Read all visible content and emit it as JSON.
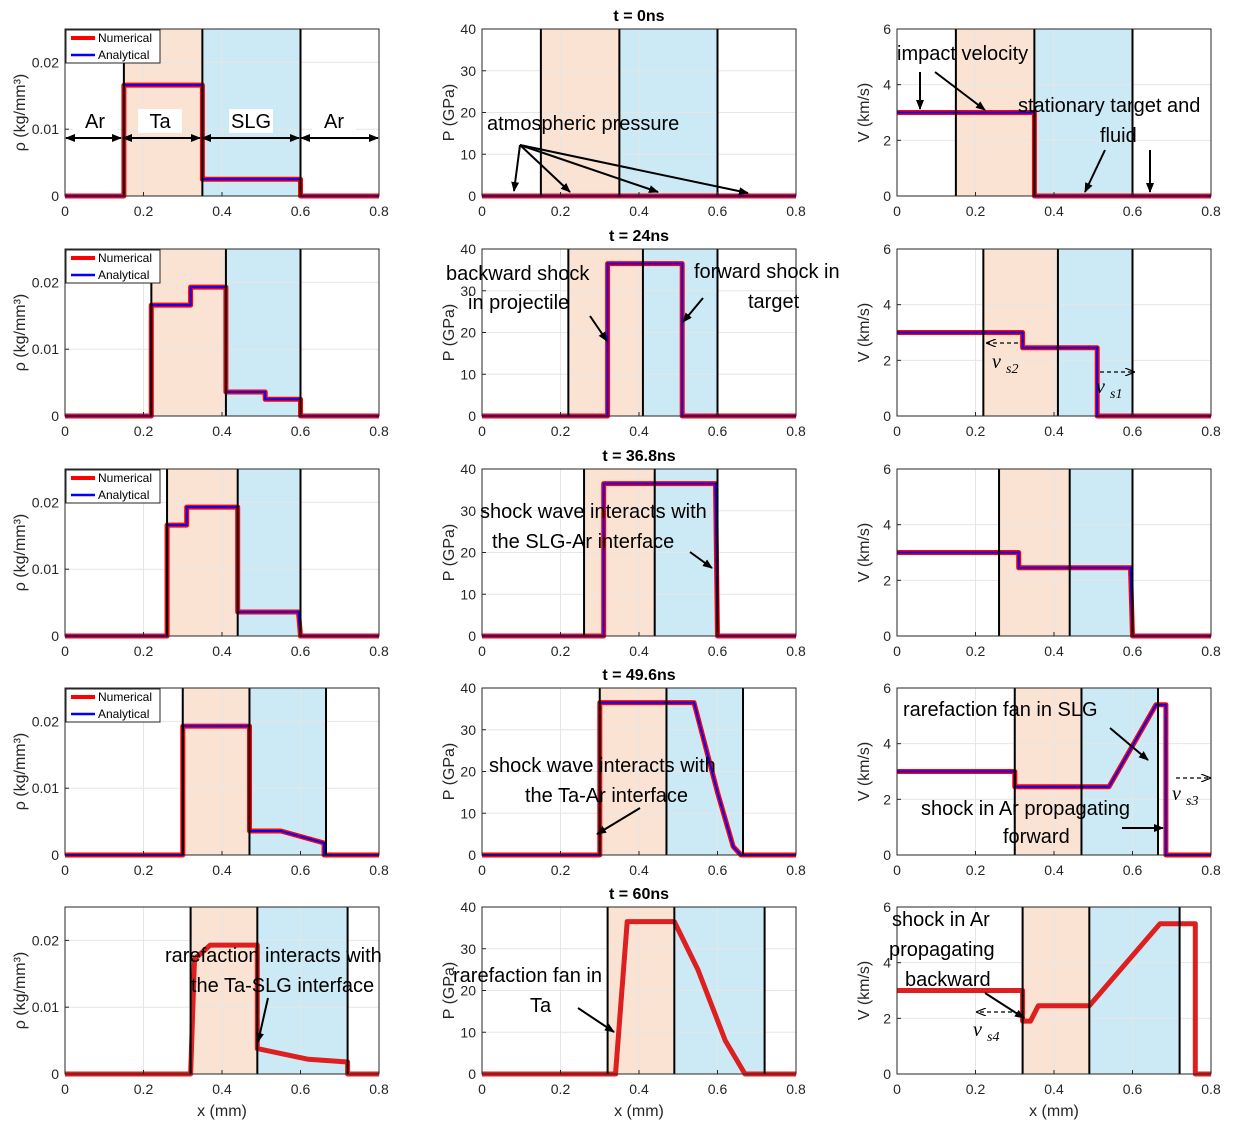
{
  "colors": {
    "numerical": "#ff0000",
    "analytical": "#0000ff",
    "ta_region": "#fbe3d4",
    "slg_region": "#cceaf6",
    "interface": "#000000",
    "grid": "#e6e6e6"
  },
  "axes": {
    "x_label": "x (mm)",
    "rho_label": "ρ (kg/mm³)",
    "p_label": "P (GPa)",
    "v_label": "V (km/s)",
    "x_ticks": [
      "0",
      "0.2",
      "0.4",
      "0.6",
      "0.8"
    ],
    "rho_ticks": [
      "0",
      "0.01",
      "0.02"
    ],
    "p_ticks": [
      "0",
      "10",
      "20",
      "30",
      "40"
    ],
    "v_ticks": [
      "0",
      "2",
      "4",
      "6"
    ]
  },
  "legend": {
    "numerical": "Numerical",
    "analytical": "Analytical"
  },
  "chart_data": [
    {
      "type": "line",
      "title": "t = 0ns",
      "xlim": [
        0,
        0.8
      ],
      "rho_ylim": [
        0,
        0.025
      ],
      "p_ylim": [
        0,
        40
      ],
      "v_ylim": [
        0,
        6
      ],
      "interfaces": [
        0.15,
        0.35,
        0.6
      ],
      "region_labels": [
        "Ar",
        "Ta",
        "SLG",
        "Ar"
      ],
      "series": [
        {
          "name": "Numerical",
          "quantity": "rho",
          "x": [
            0,
            0.15,
            0.15,
            0.35,
            0.35,
            0.6,
            0.6,
            0.8
          ],
          "y": [
            0,
            0,
            0.0166,
            0.0166,
            0.0025,
            0.0025,
            0,
            0
          ]
        },
        {
          "name": "Analytical",
          "quantity": "rho",
          "x": [
            0,
            0.15,
            0.15,
            0.35,
            0.35,
            0.6,
            0.6,
            0.8
          ],
          "y": [
            0,
            0,
            0.0166,
            0.0166,
            0.0025,
            0.0025,
            0,
            0
          ]
        },
        {
          "quantity": "P",
          "x": [
            0,
            0.8
          ],
          "y": [
            0,
            0
          ]
        },
        {
          "quantity": "V",
          "x": [
            0,
            0.35,
            0.35,
            0.8
          ],
          "y": [
            3,
            3,
            0,
            0
          ]
        }
      ],
      "annotations": {
        "atmospheric_pressure": "atmospheric pressure",
        "impact_velocity": "impact velocity",
        "stationary_1": "stationary target and",
        "stationary_2": "fluid"
      }
    },
    {
      "type": "line",
      "title": "t = 24ns",
      "interfaces": [
        0.22,
        0.41,
        0.6
      ],
      "series": [
        {
          "name": "Numerical",
          "quantity": "rho",
          "x": [
            0,
            0.22,
            0.22,
            0.32,
            0.32,
            0.41,
            0.41,
            0.51,
            0.51,
            0.6,
            0.6,
            0.8
          ],
          "y": [
            0,
            0,
            0.0166,
            0.0166,
            0.0193,
            0.0193,
            0.0036,
            0.0036,
            0.0025,
            0.0025,
            0,
            0
          ]
        },
        {
          "quantity": "P",
          "x": [
            0,
            0.32,
            0.32,
            0.51,
            0.51,
            0.8
          ],
          "y": [
            0,
            0,
            36.5,
            36.5,
            0,
            0
          ]
        },
        {
          "quantity": "V",
          "x": [
            0,
            0.32,
            0.32,
            0.51,
            0.51,
            0.8
          ],
          "y": [
            3,
            3,
            2.45,
            2.45,
            0,
            0
          ]
        }
      ],
      "annotations": {
        "backward_1": "backward shock",
        "backward_2": "in projectile",
        "forward_1": "forward shock in",
        "forward_2": "target",
        "vs2_sub": "s2",
        "vs1_sub": "s1"
      }
    },
    {
      "type": "line",
      "title": "t = 36.8ns",
      "interfaces": [
        0.26,
        0.44,
        0.6
      ],
      "series": [
        {
          "quantity": "rho",
          "x": [
            0,
            0.26,
            0.26,
            0.31,
            0.31,
            0.44,
            0.44,
            0.595,
            0.6,
            0.8
          ],
          "y": [
            0,
            0,
            0.0166,
            0.0166,
            0.0193,
            0.0193,
            0.0036,
            0.0036,
            0,
            0
          ]
        },
        {
          "quantity": "P",
          "x": [
            0,
            0.31,
            0.31,
            0.595,
            0.6,
            0.8
          ],
          "y": [
            0,
            0,
            36.5,
            36.5,
            0,
            0
          ]
        },
        {
          "quantity": "V",
          "x": [
            0,
            0.31,
            0.31,
            0.595,
            0.6,
            0.8
          ],
          "y": [
            3,
            3,
            2.45,
            2.45,
            0,
            0
          ]
        }
      ],
      "annotations": {
        "interacts_1": "shock wave interacts with",
        "interacts_2": "the SLG-Ar interface"
      }
    },
    {
      "type": "line",
      "title": "t = 49.6ns",
      "interfaces": [
        0.3,
        0.47,
        0.665
      ],
      "series": [
        {
          "quantity": "rho",
          "x": [
            0,
            0.3,
            0.3,
            0.47,
            0.47,
            0.55,
            0.66,
            0.66,
            0.8
          ],
          "y": [
            0,
            0,
            0.0193,
            0.0193,
            0.0036,
            0.0036,
            0.0018,
            0,
            0
          ]
        },
        {
          "quantity": "P",
          "x": [
            0,
            0.3,
            0.3,
            0.54,
            0.6,
            0.64,
            0.66,
            0.8
          ],
          "y": [
            0,
            0,
            36.5,
            36.5,
            15,
            2,
            0,
            0
          ]
        },
        {
          "quantity": "V",
          "x": [
            0,
            0.3,
            0.3,
            0.54,
            0.66,
            0.685,
            0.685,
            0.8
          ],
          "y": [
            3,
            3,
            2.45,
            2.45,
            5.4,
            5.4,
            0,
            0
          ]
        }
      ],
      "annotations": {
        "ta_ar_1": "shock wave interacts with",
        "ta_ar_2": "the Ta-Ar interface",
        "fan_slg": "rarefaction fan in SLG",
        "ar_fwd_1": "shock  in Ar propagating",
        "ar_fwd_2": "forward",
        "vs3_sub": "s3"
      }
    },
    {
      "type": "line",
      "title": "t = 60ns",
      "interfaces": [
        0.32,
        0.49,
        0.72
      ],
      "series": [
        {
          "name": "Numerical",
          "quantity": "rho",
          "x": [
            0,
            0.32,
            0.33,
            0.37,
            0.49,
            0.49,
            0.62,
            0.72,
            0.72,
            0.8
          ],
          "y": [
            0,
            0,
            0.0172,
            0.0193,
            0.0193,
            0.0038,
            0.0022,
            0.0018,
            0,
            0
          ]
        },
        {
          "name": "Numerical",
          "quantity": "P",
          "x": [
            0,
            0.34,
            0.37,
            0.49,
            0.55,
            0.62,
            0.67,
            0.8
          ],
          "y": [
            0,
            0,
            36.5,
            36.5,
            25,
            8,
            0,
            0
          ]
        },
        {
          "name": "Numerical",
          "quantity": "V",
          "x": [
            0,
            0.32,
            0.32,
            0.34,
            0.36,
            0.49,
            0.67,
            0.72,
            0.76,
            0.76,
            0.8
          ],
          "y": [
            3,
            3,
            1.9,
            1.9,
            2.45,
            2.45,
            5.4,
            5.4,
            5.4,
            0,
            0
          ]
        }
      ],
      "annotations": {
        "ta_slg_1": "rarefaction interacts with",
        "ta_slg_2": "the Ta-SLG interface",
        "fan_ta_1": "rarefaction fan  in",
        "fan_ta_2": "Ta",
        "ar_back_1": "shock  in Ar",
        "ar_back_2": "propagating",
        "ar_back_3": "backward",
        "vs4_sub": "s4"
      }
    }
  ]
}
